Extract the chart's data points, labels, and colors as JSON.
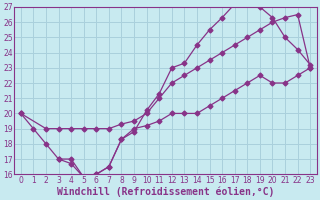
{
  "xlabel": "Windchill (Refroidissement éolien,°C)",
  "bg_color": "#c8eaf0",
  "grid_color": "#aad0dc",
  "line_color": "#883388",
  "xlim": [
    -0.5,
    23.5
  ],
  "ylim": [
    16,
    27
  ],
  "xticks": [
    0,
    1,
    2,
    3,
    4,
    5,
    6,
    7,
    8,
    9,
    10,
    11,
    12,
    13,
    14,
    15,
    16,
    17,
    18,
    19,
    20,
    21,
    22,
    23
  ],
  "yticks": [
    16,
    17,
    18,
    19,
    20,
    21,
    22,
    23,
    24,
    25,
    26,
    27
  ],
  "line1_x": [
    0,
    1,
    2,
    3,
    4,
    5,
    6,
    7,
    8,
    9,
    10,
    11,
    12,
    13,
    14,
    15,
    16,
    17,
    18,
    19,
    20,
    21,
    22,
    23
  ],
  "line1_y": [
    20,
    19,
    18,
    17,
    16.7,
    15.8,
    16,
    16.5,
    18.3,
    18.8,
    20.2,
    21.3,
    23.0,
    23.3,
    24.5,
    25.5,
    26.3,
    27.2,
    27.2,
    27.0,
    26.3,
    25.0,
    24.2,
    23.2
  ],
  "line2_x": [
    0,
    2,
    3,
    4,
    5,
    6,
    7,
    8,
    9,
    10,
    11,
    12,
    13,
    14,
    15,
    16,
    17,
    18,
    19,
    20,
    21,
    22,
    23
  ],
  "line2_y": [
    20,
    19,
    19,
    19,
    19,
    19,
    19,
    19.3,
    19.5,
    20,
    21,
    22,
    22.5,
    23,
    23.5,
    24,
    24.5,
    25,
    25.5,
    26,
    26.3,
    26.5,
    23
  ],
  "line3_x": [
    3,
    4,
    5,
    6,
    7,
    8,
    9,
    10,
    11,
    12,
    13,
    14,
    15,
    16,
    17,
    18,
    19,
    20,
    21,
    22,
    23
  ],
  "line3_y": [
    17,
    17,
    15.8,
    16,
    16.5,
    18.3,
    19,
    19.2,
    19.5,
    20,
    20,
    20,
    20.5,
    21,
    21.5,
    22,
    22.5,
    22,
    22,
    22.5,
    23
  ],
  "tick_fontsize": 5.5,
  "label_fontsize": 7.0
}
